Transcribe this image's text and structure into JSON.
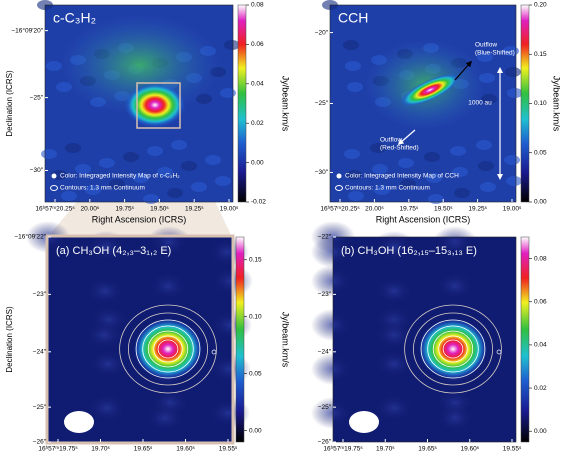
{
  "panels": [
    {
      "title": "c-C₃H₂",
      "x_ticks": [
        "16ʰ57ᵐ20.25ˢ",
        "20.00ˢ",
        "19.75ˢ",
        "19.50ˢ",
        "19.25ˢ",
        "19.00ˢ"
      ],
      "y_ticks": [
        "−16°09′20″",
        "−25″",
        "−30″"
      ],
      "x_label": "Right Ascension (ICRS)",
      "y_label": "Declination (ICRS)",
      "colorbar": {
        "label": "Jy/beam.km/s",
        "lim": [
          -0.02,
          0.08
        ],
        "ticks": [
          {
            "value": -0.02,
            "label": "-0.02"
          },
          {
            "value": 0,
            "label": "0.00"
          },
          0.02,
          0.04,
          0.06,
          0.08
        ]
      },
      "annotations": [
        "Color: Integraged Intensity Map of c-C₃H₂",
        "Contours: 1.3 mm Continuum"
      ]
    },
    {
      "title": "CCH",
      "x_ticks": [
        "16ʰ57ᵐ20.25ˢ",
        "20.00ˢ",
        "19.75ˢ",
        "19.50ˢ",
        "19.25ˢ",
        "19.00ˢ"
      ],
      "y_ticks": [
        "−20″",
        "−25″",
        "−30″"
      ],
      "x_label": "Right Ascension (ICRS)",
      "colorbar": {
        "label": "Jy/beam.km/s",
        "lim": [
          0,
          0.2
        ],
        "ticks": [
          {
            "value": 0,
            "label": "0.00"
          },
          0.05,
          {
            "value": 0.1,
            "label": "0.10"
          },
          0.15,
          {
            "value": 0.2,
            "label": "0.20"
          }
        ]
      },
      "annotations": [
        "Outflow",
        "(Blue-Shifted)",
        "Outflow",
        "(Red-Shifted)",
        "1000 au",
        "Color: Integraged Intensity Map of CCH",
        "Contours: 1.3 mm Continuum"
      ]
    },
    {
      "title": "(a) CH₃OH (4₂,₃–3₁,₂ E)",
      "x_ticks": [
        "16ʰ57ᵐ19.75ˢ",
        "19.70ˢ",
        "19.65ˢ",
        "19.60ˢ",
        "19.55ˢ"
      ],
      "y_ticks": [
        "−16°09′22″",
        "−23″",
        "−24″",
        "−25″",
        "−26″"
      ],
      "y_label": "Declination (ICRS)",
      "colorbar": {
        "label": "Jy/beam.km/s",
        "lim": [
          -0.01,
          0.17
        ],
        "ticks": [
          {
            "value": 0,
            "label": "0.00"
          },
          0.05,
          {
            "value": 0.1,
            "label": "0.10"
          },
          0.15
        ]
      }
    },
    {
      "title": "(b) CH₃OH (16₂,₁₅–15₃,₁₃ E)",
      "x_ticks": [
        "16ʰ57ᵐ19.75ˢ",
        "19.70ˢ",
        "19.65ˢ",
        "19.60ˢ",
        "19.55ˢ"
      ],
      "y_ticks": [
        "−22″",
        "−23″",
        "−24″",
        "−25″",
        "−26″"
      ],
      "colorbar": {
        "lim": [
          -0.005,
          0.09
        ],
        "ticks": [
          {
            "value": 0,
            "label": "0.00"
          },
          0.02,
          0.04,
          0.06,
          0.08
        ]
      }
    }
  ]
}
